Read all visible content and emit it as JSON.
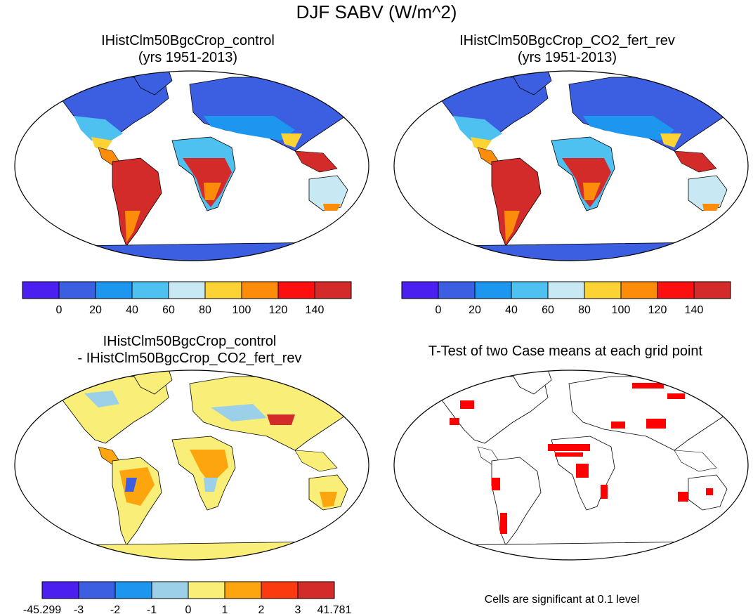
{
  "figure": {
    "title": "DJF SABV (W/m^2)",
    "panels": [
      {
        "title_line1": "IHistClm50BgcCrop_control",
        "title_line2": "(yrs 1951-2013)"
      },
      {
        "title_line1": "IHistClm50BgcCrop_CO2_fert_rev",
        "title_line2": "(yrs 1951-2013)"
      },
      {
        "title_line1": "IHistClm50BgcCrop_control",
        "title_line2": "- IHistClm50BgcCrop_CO2_fert_rev"
      },
      {
        "title_line1": "T-Test of two Case means at each grid point",
        "title_line2": ""
      }
    ],
    "significance_note": "Cells are significant at 0.1 level"
  },
  "colorbars": {
    "absolute": {
      "colors": [
        "#4a1ff0",
        "#3b5fe0",
        "#1d96f0",
        "#4fc1f0",
        "#c8e8f4",
        "#fcd335",
        "#fc8c0a",
        "#fc0f0f",
        "#d32a2a"
      ],
      "labels": [
        "0",
        "20",
        "40",
        "60",
        "80",
        "100",
        "120",
        "140"
      ]
    },
    "difference": {
      "colors": [
        "#4a1ff0",
        "#3b5fe0",
        "#1d96f0",
        "#9ccfe8",
        "#f8ee78",
        "#fca50f",
        "#fc3a0f",
        "#d32a2a"
      ],
      "labels": [
        "-45.299",
        "-3",
        "-2",
        "-1",
        "0",
        "1",
        "2",
        "3",
        "41.781"
      ]
    }
  },
  "colors": {
    "land_fill_absolute_cold": "#3b5fe0",
    "land_fill_absolute_hot": "#d32a2a",
    "land_fill_difference": "#f8ee78",
    "significant_cell": "#ff0000",
    "coastline": "#000000"
  }
}
